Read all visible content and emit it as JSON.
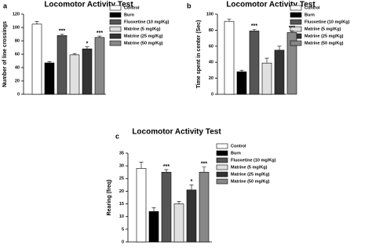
{
  "chart_data": [
    {
      "type": "bar",
      "panel": "a",
      "title": "Locomotor Activity Test",
      "y_label": "Number of line crossings",
      "categories": [
        null
      ],
      "ylim": [
        0,
        120
      ],
      "yticks": [
        0,
        20,
        40,
        60,
        80,
        100,
        120
      ],
      "series": [
        {
          "name": "Control",
          "color": "#ffffff",
          "values": [
            105
          ],
          "errors": [
            4
          ]
        },
        {
          "name": "Burn",
          "color": "#000000",
          "values": [
            47
          ],
          "errors": [
            2
          ],
          "annotation": "###"
        },
        {
          "name": "Fluoxetine (10 mg/Kg)",
          "color": "#555555",
          "values": [
            88
          ],
          "errors": [
            2
          ],
          "annotation": "***"
        },
        {
          "name": "Matrine (5 mg/Kg)",
          "color": "#e0e0e0",
          "values": [
            59
          ],
          "errors": [
            2
          ]
        },
        {
          "name": "Matrine (25 mg/Kg)",
          "color": "#333333",
          "values": [
            68
          ],
          "errors": [
            3
          ],
          "annotation": "*"
        },
        {
          "name": "Matrine (50 mg/Kg)",
          "color": "#888888",
          "values": [
            85
          ],
          "errors": [
            2
          ],
          "annotation": "***"
        }
      ]
    },
    {
      "type": "bar",
      "panel": "b",
      "title": "Locomotor Activity Test",
      "y_label": "Time spent in center (Sec)",
      "categories": [
        null
      ],
      "ylim": [
        0,
        100
      ],
      "yticks": [
        0,
        20,
        40,
        60,
        80,
        100
      ],
      "series": [
        {
          "name": "Control",
          "color": "#ffffff",
          "values": [
            91
          ],
          "errors": [
            3
          ]
        },
        {
          "name": "Burn",
          "color": "#000000",
          "values": [
            28
          ],
          "errors": [
            2
          ],
          "annotation": "###"
        },
        {
          "name": "Fluoxetine (10 mg/Kg)",
          "color": "#555555",
          "values": [
            79
          ],
          "errors": [
            2
          ],
          "annotation": "***"
        },
        {
          "name": "Matrine (5 mg/Kg)",
          "color": "#e0e0e0",
          "values": [
            39
          ],
          "errors": [
            6
          ]
        },
        {
          "name": "Matrine (25 mg/Kg)",
          "color": "#333333",
          "values": [
            55
          ],
          "errors": [
            5
          ]
        },
        {
          "name": "Matrine (50 mg/Kg)",
          "color": "#888888",
          "values": [
            77
          ],
          "errors": [
            2
          ],
          "annotation": "***"
        }
      ]
    },
    {
      "type": "bar",
      "panel": "c",
      "title": "Locomotor Activity Test",
      "y_label": "Rearing (freq)",
      "categories": [
        null
      ],
      "ylim": [
        0,
        35
      ],
      "yticks": [
        0,
        5,
        10,
        15,
        20,
        25,
        30,
        35
      ],
      "series": [
        {
          "name": "Control",
          "color": "#ffffff",
          "values": [
            29
          ],
          "errors": [
            2.5
          ]
        },
        {
          "name": "Burn",
          "color": "#000000",
          "values": [
            12
          ],
          "errors": [
            1.5
          ],
          "annotation": "###"
        },
        {
          "name": "Fluoxetine (10 mg/Kg)",
          "color": "#555555",
          "values": [
            27.5
          ],
          "errors": [
            1
          ],
          "annotation": "***"
        },
        {
          "name": "Matrine (5 mg/Kg)",
          "color": "#e0e0e0",
          "values": [
            15
          ],
          "errors": [
            1
          ]
        },
        {
          "name": "Matrine (25 mg/Kg)",
          "color": "#333333",
          "values": [
            20.5
          ],
          "errors": [
            2
          ],
          "annotation": "*"
        },
        {
          "name": "Matrine (50 mg/Kg)",
          "color": "#888888",
          "values": [
            27.5
          ],
          "errors": [
            2
          ],
          "annotation": "***"
        }
      ]
    }
  ]
}
